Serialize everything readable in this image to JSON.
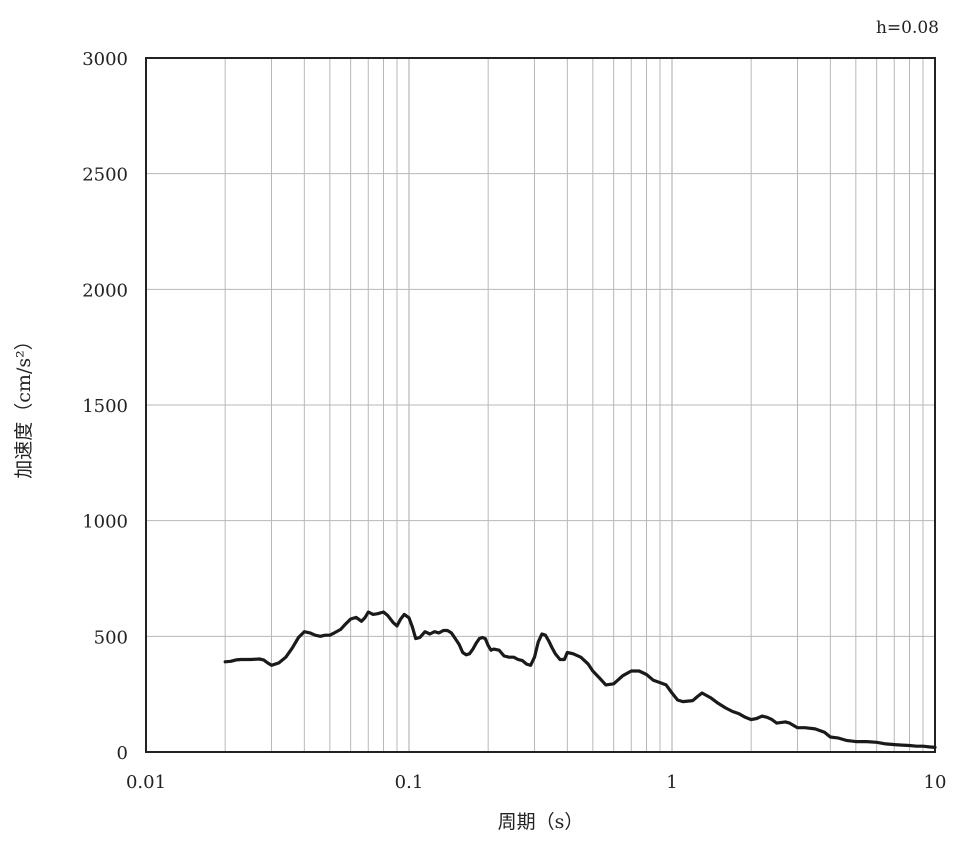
{
  "chart_data": {
    "type": "line",
    "annotation": "h=0.08",
    "xlabel": "周期（s）",
    "ylabel": "加速度（cm/s²）",
    "x_scale": "log",
    "xlim": [
      0.01,
      10
    ],
    "ylim": [
      0,
      3000
    ],
    "grid": true,
    "x_ticks": [
      {
        "value": 0.01,
        "label": "0.01"
      },
      {
        "value": 0.1,
        "label": "0.1"
      },
      {
        "value": 1,
        "label": "1"
      },
      {
        "value": 10,
        "label": "10"
      }
    ],
    "y_ticks": [
      {
        "value": 0,
        "label": "0"
      },
      {
        "value": 500,
        "label": "500"
      },
      {
        "value": 1000,
        "label": "1000"
      },
      {
        "value": 1500,
        "label": "1500"
      },
      {
        "value": 2000,
        "label": "2000"
      },
      {
        "value": 2500,
        "label": "2500"
      },
      {
        "value": 3000,
        "label": "3000"
      }
    ],
    "series": [
      {
        "color": "#1a1a1a",
        "points": [
          [
            0.02,
            390
          ],
          [
            0.021,
            392
          ],
          [
            0.022,
            398
          ],
          [
            0.023,
            400
          ],
          [
            0.025,
            400
          ],
          [
            0.027,
            402
          ],
          [
            0.028,
            398
          ],
          [
            0.029,
            385
          ],
          [
            0.03,
            375
          ],
          [
            0.032,
            385
          ],
          [
            0.034,
            410
          ],
          [
            0.036,
            450
          ],
          [
            0.038,
            495
          ],
          [
            0.04,
            520
          ],
          [
            0.042,
            515
          ],
          [
            0.044,
            505
          ],
          [
            0.046,
            500
          ],
          [
            0.048,
            505
          ],
          [
            0.05,
            505
          ],
          [
            0.052,
            515
          ],
          [
            0.055,
            530
          ],
          [
            0.057,
            550
          ],
          [
            0.06,
            575
          ],
          [
            0.063,
            582
          ],
          [
            0.066,
            565
          ],
          [
            0.068,
            580
          ],
          [
            0.07,
            605
          ],
          [
            0.073,
            595
          ],
          [
            0.076,
            598
          ],
          [
            0.08,
            605
          ],
          [
            0.083,
            590
          ],
          [
            0.087,
            560
          ],
          [
            0.09,
            545
          ],
          [
            0.093,
            575
          ],
          [
            0.096,
            595
          ],
          [
            0.1,
            580
          ],
          [
            0.103,
            540
          ],
          [
            0.106,
            490
          ],
          [
            0.11,
            495
          ],
          [
            0.115,
            520
          ],
          [
            0.12,
            510
          ],
          [
            0.125,
            520
          ],
          [
            0.13,
            515
          ],
          [
            0.135,
            525
          ],
          [
            0.14,
            525
          ],
          [
            0.145,
            515
          ],
          [
            0.15,
            490
          ],
          [
            0.155,
            465
          ],
          [
            0.16,
            430
          ],
          [
            0.165,
            420
          ],
          [
            0.17,
            425
          ],
          [
            0.175,
            445
          ],
          [
            0.18,
            470
          ],
          [
            0.185,
            490
          ],
          [
            0.19,
            495
          ],
          [
            0.195,
            490
          ],
          [
            0.2,
            460
          ],
          [
            0.205,
            440
          ],
          [
            0.21,
            445
          ],
          [
            0.22,
            440
          ],
          [
            0.23,
            415
          ],
          [
            0.24,
            410
          ],
          [
            0.25,
            410
          ],
          [
            0.26,
            400
          ],
          [
            0.27,
            395
          ],
          [
            0.28,
            380
          ],
          [
            0.29,
            375
          ],
          [
            0.3,
            410
          ],
          [
            0.31,
            475
          ],
          [
            0.32,
            510
          ],
          [
            0.33,
            505
          ],
          [
            0.34,
            480
          ],
          [
            0.35,
            450
          ],
          [
            0.36,
            425
          ],
          [
            0.375,
            400
          ],
          [
            0.39,
            400
          ],
          [
            0.4,
            430
          ],
          [
            0.42,
            425
          ],
          [
            0.45,
            410
          ],
          [
            0.48,
            380
          ],
          [
            0.5,
            350
          ],
          [
            0.53,
            320
          ],
          [
            0.56,
            290
          ],
          [
            0.6,
            295
          ],
          [
            0.65,
            330
          ],
          [
            0.7,
            350
          ],
          [
            0.75,
            350
          ],
          [
            0.8,
            335
          ],
          [
            0.85,
            310
          ],
          [
            0.9,
            300
          ],
          [
            0.95,
            290
          ],
          [
            1.0,
            255
          ],
          [
            1.05,
            225
          ],
          [
            1.1,
            218
          ],
          [
            1.2,
            222
          ],
          [
            1.25,
            240
          ],
          [
            1.3,
            255
          ],
          [
            1.4,
            235
          ],
          [
            1.5,
            210
          ],
          [
            1.6,
            190
          ],
          [
            1.7,
            175
          ],
          [
            1.8,
            165
          ],
          [
            1.9,
            150
          ],
          [
            2.0,
            140
          ],
          [
            2.1,
            145
          ],
          [
            2.2,
            155
          ],
          [
            2.3,
            150
          ],
          [
            2.4,
            140
          ],
          [
            2.5,
            125
          ],
          [
            2.7,
            130
          ],
          [
            2.8,
            125
          ],
          [
            3.0,
            105
          ],
          [
            3.2,
            105
          ],
          [
            3.5,
            100
          ],
          [
            3.8,
            85
          ],
          [
            4.0,
            65
          ],
          [
            4.3,
            60
          ],
          [
            4.6,
            50
          ],
          [
            5.0,
            45
          ],
          [
            5.5,
            45
          ],
          [
            6.0,
            42
          ],
          [
            6.5,
            35
          ],
          [
            7.0,
            32
          ],
          [
            7.5,
            30
          ],
          [
            8.0,
            28
          ],
          [
            8.5,
            25
          ],
          [
            9.0,
            25
          ],
          [
            9.5,
            22
          ],
          [
            10.0,
            20
          ]
        ]
      }
    ]
  }
}
